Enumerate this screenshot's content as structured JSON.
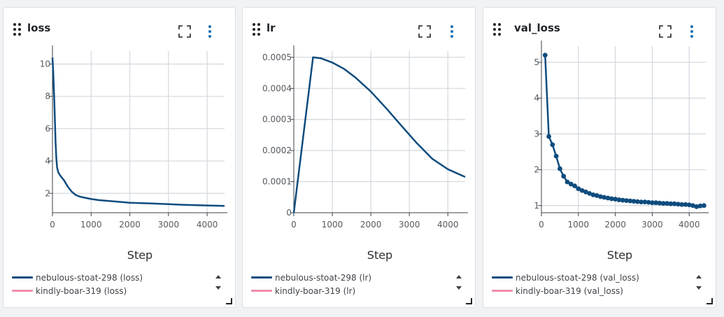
{
  "colors": {
    "series1": "#0f4c7e",
    "series2": "#f08ea9",
    "grid": "#d3d8de",
    "axis": "#3c4046"
  },
  "icons": [
    "drag-handle-icon",
    "fullscreen-icon",
    "more-options-icon",
    "scroll-up-icon",
    "scroll-down-icon",
    "resize-handle-icon"
  ],
  "panels": [
    {
      "id": "loss",
      "title": "loss",
      "xlabel": "Step",
      "legend": [
        "nebulous-stoat-298 (loss)",
        "kindly-boar-319 (loss)"
      ],
      "xticks": [
        "0",
        "1000",
        "2000",
        "3000",
        "4000"
      ],
      "yticks": [
        "2",
        "4",
        "6",
        "8",
        "10"
      ]
    },
    {
      "id": "lr",
      "title": "lr",
      "xlabel": "Step",
      "legend": [
        "nebulous-stoat-298 (lr)",
        "kindly-boar-319 (lr)"
      ],
      "xticks": [
        "0",
        "1000",
        "2000",
        "3000",
        "4000"
      ],
      "yticks": [
        "0",
        "0.0001",
        "0.0002",
        "0.0003",
        "0.0004",
        "0.0005"
      ]
    },
    {
      "id": "val_loss",
      "title": "val_loss",
      "xlabel": "Step",
      "legend": [
        "nebulous-stoat-298 (val_loss)",
        "kindly-boar-319 (val_loss)"
      ],
      "xticks": [
        "0",
        "1000",
        "2000",
        "3000",
        "4000"
      ],
      "yticks": [
        "1",
        "2",
        "3",
        "4",
        "5"
      ]
    }
  ],
  "chart_data": [
    {
      "type": "line",
      "title": "loss",
      "xlabel": "Step",
      "ylabel": "",
      "xlim": [
        0,
        4450
      ],
      "ylim": [
        0.8,
        10.8
      ],
      "series": [
        {
          "name": "nebulous-stoat-298 (loss)",
          "x": [
            0,
            20,
            50,
            80,
            100,
            120,
            150,
            200,
            300,
            400,
            500,
            600,
            700,
            800,
            1000,
            1200,
            1500,
            1800,
            2000,
            2500,
            3000,
            3500,
            4000,
            4450
          ],
          "y": [
            10.4,
            9.5,
            7.5,
            5.2,
            4.2,
            3.6,
            3.3,
            3.1,
            2.8,
            2.4,
            2.1,
            1.9,
            1.8,
            1.75,
            1.65,
            1.58,
            1.52,
            1.46,
            1.42,
            1.38,
            1.33,
            1.28,
            1.25,
            1.22
          ]
        },
        {
          "name": "kindly-boar-319 (loss)",
          "x": [],
          "y": []
        }
      ]
    },
    {
      "type": "line",
      "title": "lr",
      "xlabel": "Step",
      "ylabel": "",
      "xlim": [
        0,
        4450
      ],
      "ylim": [
        0,
        0.00052
      ],
      "series": [
        {
          "name": "nebulous-stoat-298 (lr)",
          "x": [
            0,
            500,
            700,
            1000,
            1300,
            1600,
            2000,
            2400,
            2800,
            3200,
            3600,
            4000,
            4450
          ],
          "y": [
            0,
            0.0005,
            0.000497,
            0.000483,
            0.000463,
            0.000435,
            0.00039,
            0.000336,
            0.000279,
            0.000223,
            0.000173,
            0.00014,
            0.000115
          ]
        },
        {
          "name": "kindly-boar-319 (lr)",
          "x": [],
          "y": []
        }
      ]
    },
    {
      "type": "line",
      "title": "val_loss",
      "xlabel": "Step",
      "ylabel": "",
      "xlim": [
        0,
        4450
      ],
      "ylim": [
        0.8,
        5.45
      ],
      "series": [
        {
          "name": "nebulous-stoat-298 (val_loss)",
          "x": [
            100,
            200,
            300,
            400,
            500,
            600,
            700,
            800,
            900,
            1000,
            1100,
            1200,
            1300,
            1400,
            1500,
            1600,
            1700,
            1800,
            1900,
            2000,
            2100,
            2200,
            2300,
            2400,
            2500,
            2600,
            2700,
            2800,
            2900,
            3000,
            3100,
            3200,
            3300,
            3400,
            3500,
            3600,
            3700,
            3800,
            3900,
            4000,
            4100,
            4200,
            4300,
            4400
          ],
          "y": [
            5.2,
            2.93,
            2.7,
            2.38,
            2.03,
            1.82,
            1.66,
            1.6,
            1.55,
            1.47,
            1.42,
            1.38,
            1.34,
            1.3,
            1.28,
            1.25,
            1.23,
            1.21,
            1.19,
            1.18,
            1.16,
            1.15,
            1.14,
            1.13,
            1.12,
            1.11,
            1.1,
            1.1,
            1.09,
            1.08,
            1.08,
            1.07,
            1.06,
            1.06,
            1.05,
            1.05,
            1.04,
            1.03,
            1.03,
            1.02,
            1.0,
            0.97,
            0.99,
            1.0
          ]
        },
        {
          "name": "kindly-boar-319 (val_loss)",
          "x": [],
          "y": []
        }
      ]
    }
  ]
}
